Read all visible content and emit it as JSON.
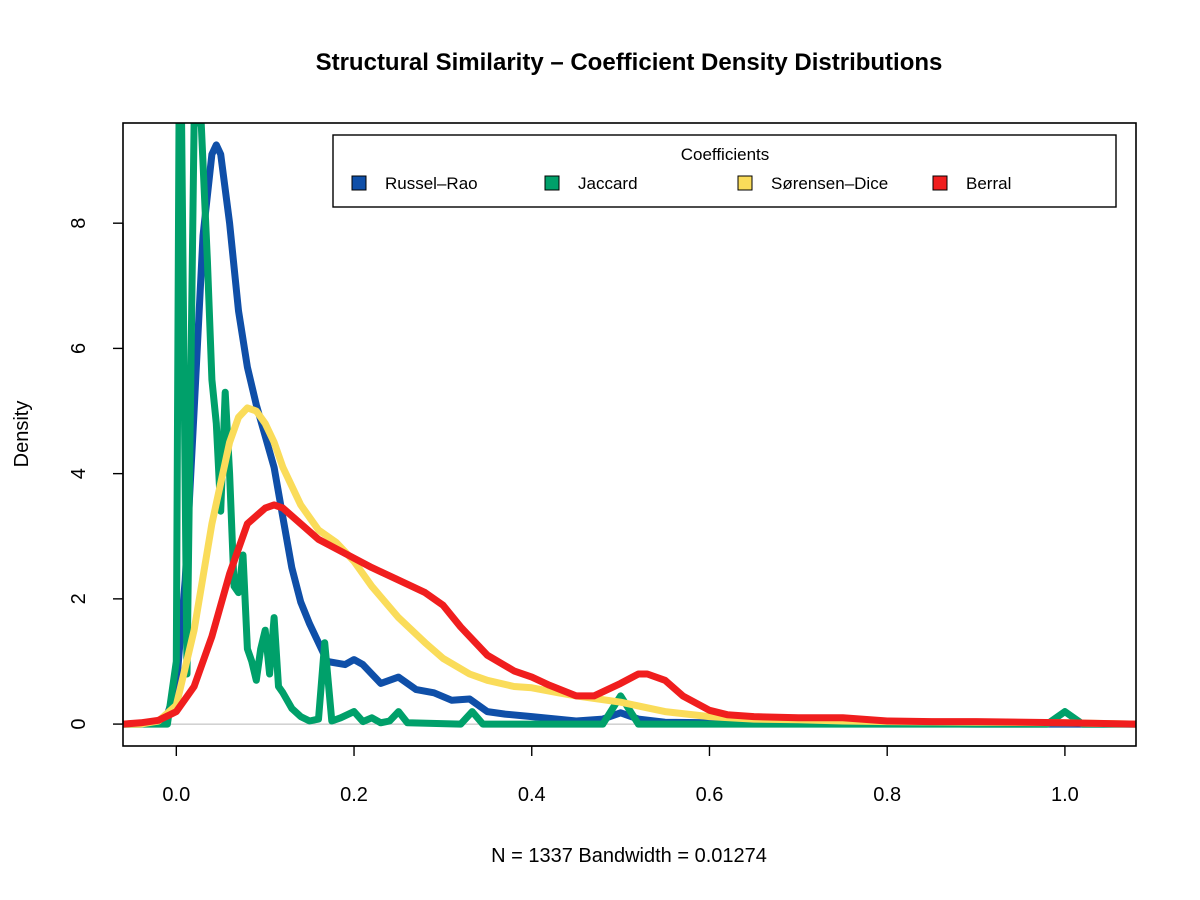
{
  "chart_data": {
    "type": "line",
    "title": "Structural Similarity – Coefficient Density Distributions",
    "xlabel": "N = 1337   Bandwidth = 0.01274",
    "ylabel": "Density",
    "xlim": [
      -0.06,
      1.08
    ],
    "ylim": [
      -0.35,
      9.6
    ],
    "x_ticks": [
      0.0,
      0.2,
      0.4,
      0.6,
      0.8,
      1.0
    ],
    "x_tick_labels": [
      "0.0",
      "0.2",
      "0.4",
      "0.6",
      "0.8",
      "1.0"
    ],
    "y_ticks": [
      0,
      2,
      4,
      6,
      8
    ],
    "y_tick_labels": [
      "0",
      "2",
      "4",
      "6",
      "8"
    ],
    "legend": {
      "title": "Coefficients",
      "position": "top-right",
      "entries": [
        "Russel–Rao",
        "Jaccard",
        "Sørensen–Dice",
        "Berral"
      ]
    },
    "series": [
      {
        "name": "Russel–Rao",
        "color": "#0f4fa8",
        "x": [
          -0.06,
          -0.04,
          -0.02,
          -0.01,
          0.0,
          0.01,
          0.02,
          0.03,
          0.04,
          0.045,
          0.05,
          0.06,
          0.07,
          0.08,
          0.09,
          0.1,
          0.11,
          0.12,
          0.13,
          0.14,
          0.15,
          0.17,
          0.19,
          0.2,
          0.21,
          0.23,
          0.25,
          0.27,
          0.29,
          0.31,
          0.33,
          0.35,
          0.37,
          0.4,
          0.45,
          0.48,
          0.5,
          0.52,
          0.55,
          0.6,
          0.65,
          0.68,
          0.7,
          0.75,
          0.8,
          0.9,
          1.0,
          1.08
        ],
        "y": [
          0.0,
          0.0,
          0.04,
          0.15,
          0.6,
          2.3,
          5.0,
          7.8,
          9.1,
          9.25,
          9.1,
          8.0,
          6.6,
          5.7,
          5.1,
          4.6,
          4.1,
          3.3,
          2.5,
          1.95,
          1.6,
          1.0,
          0.95,
          1.03,
          0.95,
          0.65,
          0.75,
          0.55,
          0.5,
          0.38,
          0.4,
          0.2,
          0.16,
          0.12,
          0.05,
          0.08,
          0.18,
          0.08,
          0.03,
          0.02,
          0.02,
          0.06,
          0.03,
          0.01,
          0.01,
          0.0,
          0.0,
          0.0
        ]
      },
      {
        "name": "Jaccard",
        "color": "#00a06a",
        "x": [
          -0.06,
          -0.01,
          0.0,
          0.003,
          0.006,
          0.012,
          0.02,
          0.028,
          0.035,
          0.04,
          0.045,
          0.05,
          0.055,
          0.06,
          0.065,
          0.07,
          0.075,
          0.08,
          0.085,
          0.09,
          0.095,
          0.1,
          0.105,
          0.11,
          0.115,
          0.12,
          0.13,
          0.14,
          0.15,
          0.16,
          0.167,
          0.175,
          0.185,
          0.2,
          0.21,
          0.22,
          0.23,
          0.24,
          0.25,
          0.26,
          0.32,
          0.333,
          0.345,
          0.48,
          0.5,
          0.52,
          0.98,
          1.0,
          1.02,
          1.08
        ],
        "y": [
          0.0,
          0.0,
          1.0,
          9.6,
          9.6,
          0.8,
          9.6,
          9.6,
          7.4,
          5.5,
          4.8,
          3.4,
          5.3,
          4.0,
          2.2,
          2.1,
          2.7,
          1.2,
          1.0,
          0.7,
          1.2,
          1.5,
          0.8,
          1.7,
          0.6,
          0.5,
          0.25,
          0.12,
          0.05,
          0.08,
          1.3,
          0.05,
          0.1,
          0.2,
          0.04,
          0.1,
          0.02,
          0.05,
          0.2,
          0.02,
          0.0,
          0.2,
          0.0,
          0.0,
          0.45,
          0.0,
          0.0,
          0.2,
          0.0,
          0.0
        ]
      },
      {
        "name": "Sørensen–Dice",
        "color": "#fadc5a",
        "x": [
          -0.06,
          -0.04,
          -0.02,
          0.0,
          0.02,
          0.04,
          0.06,
          0.07,
          0.08,
          0.09,
          0.1,
          0.11,
          0.12,
          0.14,
          0.16,
          0.18,
          0.2,
          0.22,
          0.25,
          0.28,
          0.3,
          0.33,
          0.35,
          0.38,
          0.4,
          0.43,
          0.45,
          0.5,
          0.55,
          0.6,
          0.65,
          0.7,
          0.75,
          0.8,
          0.9,
          1.0,
          1.08
        ],
        "y": [
          0.0,
          0.0,
          0.05,
          0.3,
          1.5,
          3.2,
          4.5,
          4.9,
          5.05,
          5.0,
          4.8,
          4.5,
          4.1,
          3.5,
          3.1,
          2.9,
          2.6,
          2.2,
          1.7,
          1.3,
          1.05,
          0.8,
          0.7,
          0.6,
          0.58,
          0.5,
          0.45,
          0.35,
          0.2,
          0.12,
          0.08,
          0.07,
          0.05,
          0.04,
          0.03,
          0.02,
          0.0
        ]
      },
      {
        "name": "Berral",
        "color": "#f01e1e",
        "x": [
          -0.06,
          -0.04,
          -0.02,
          0.0,
          0.02,
          0.04,
          0.06,
          0.08,
          0.1,
          0.11,
          0.12,
          0.14,
          0.16,
          0.18,
          0.2,
          0.22,
          0.25,
          0.28,
          0.3,
          0.32,
          0.35,
          0.38,
          0.4,
          0.42,
          0.45,
          0.47,
          0.5,
          0.52,
          0.53,
          0.55,
          0.57,
          0.6,
          0.62,
          0.65,
          0.7,
          0.75,
          0.8,
          0.85,
          0.9,
          1.0,
          1.08
        ],
        "y": [
          0.0,
          0.02,
          0.06,
          0.2,
          0.6,
          1.4,
          2.4,
          3.2,
          3.45,
          3.5,
          3.45,
          3.2,
          2.95,
          2.8,
          2.65,
          2.5,
          2.3,
          2.1,
          1.9,
          1.55,
          1.1,
          0.85,
          0.75,
          0.62,
          0.45,
          0.45,
          0.65,
          0.8,
          0.8,
          0.7,
          0.45,
          0.22,
          0.15,
          0.12,
          0.1,
          0.1,
          0.05,
          0.04,
          0.04,
          0.02,
          0.0
        ]
      }
    ]
  }
}
